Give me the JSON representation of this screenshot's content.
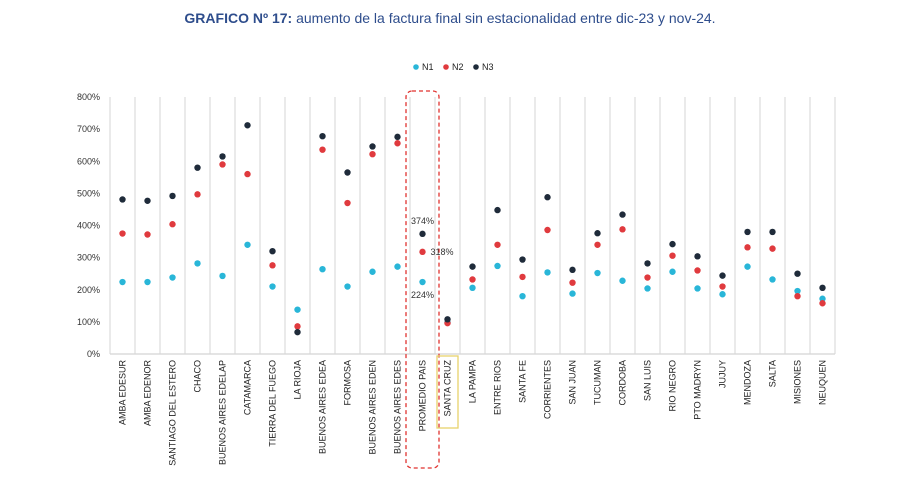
{
  "chart_data": {
    "type": "scatter",
    "title_bold": "GRAFICO Nº 17:",
    "title_rest": " aumento de la factura final sin estacionalidad entre dic-23 y nov-24.",
    "xlabel": "",
    "ylabel": "",
    "ylim": [
      0,
      800
    ],
    "yticks": [
      "0%",
      "100%",
      "200%",
      "300%",
      "400%",
      "500%",
      "600%",
      "700%",
      "800%"
    ],
    "legend_position": "top-center",
    "categories": [
      "AMBA EDESUR",
      "AMBA EDENOR",
      "SANTIAGO DEL ESTERO",
      "CHACO",
      "BUENOS AIRES EDELAP",
      "CATAMARCA",
      "TIERRA DEL FUEGO",
      "LA RIOJA",
      "BUENOS AIRES EDEA",
      "FORMOSA",
      "BUENOS AIRES EDEN",
      "BUENOS AIRES EDES",
      "PROMEDIO PAIS",
      "SANTA CRUZ",
      "LA PAMPA",
      "ENTRE RIOS",
      "SANTA FE",
      "CORRIENTES",
      "SAN JUAN",
      "TUCUMAN",
      "CORDOBA",
      "SAN LUIS",
      "RIO NEGRO",
      "PTO MADRYN",
      "JUJUY",
      "MENDOZA",
      "SALTA",
      "MISIONES",
      "NEUQUEN"
    ],
    "series": [
      {
        "name": "N1",
        "color": "#29b6d8",
        "values": [
          224,
          224,
          238,
          282,
          243,
          340,
          210,
          138,
          264,
          210,
          256,
          272,
          224,
          98,
          206,
          274,
          180,
          254,
          188,
          252,
          228,
          204,
          256,
          204,
          186,
          272,
          232,
          196,
          172
        ]
      },
      {
        "name": "N2",
        "color": "#e03a3e",
        "values": [
          375,
          372,
          404,
          497,
          590,
          560,
          276,
          86,
          636,
          470,
          622,
          656,
          318,
          96,
          232,
          340,
          240,
          386,
          222,
          340,
          388,
          238,
          306,
          260,
          210,
          332,
          328,
          180,
          158
        ]
      },
      {
        "name": "N3",
        "color": "#1f2b3a",
        "values": [
          481,
          477,
          492,
          580,
          615,
          712,
          320,
          68,
          678,
          565,
          646,
          676,
          374,
          108,
          272,
          448,
          294,
          488,
          262,
          376,
          434,
          282,
          342,
          304,
          244,
          380,
          380,
          250,
          206
        ]
      }
    ],
    "data_labels": [
      {
        "text": "374%"
      },
      {
        "text": "318%"
      },
      {
        "text": "224%"
      }
    ],
    "highlight_dashed": "PROMEDIO PAIS",
    "highlight_box": "SANTA CRUZ"
  }
}
